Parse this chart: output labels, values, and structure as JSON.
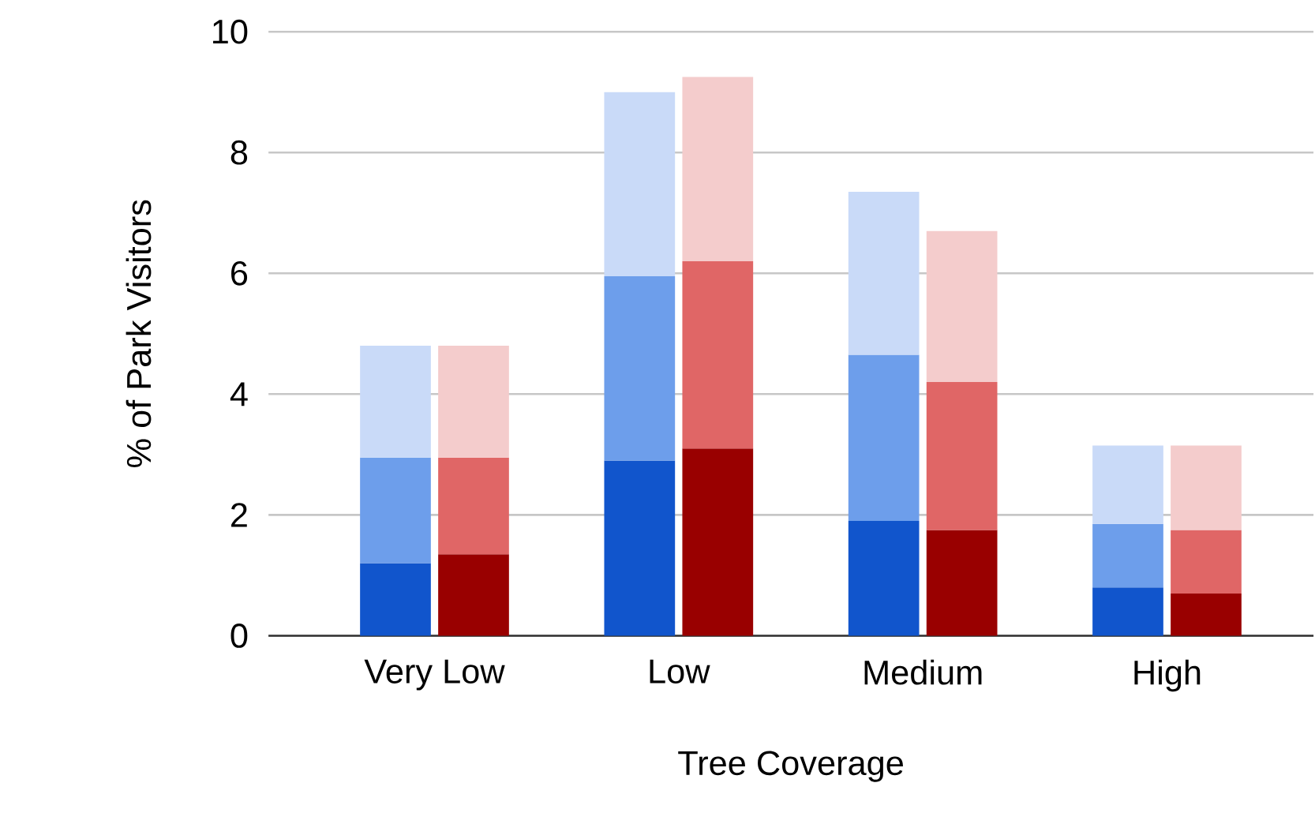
{
  "chart_data": {
    "type": "bar",
    "xlabel": "Tree Coverage",
    "ylabel": "% of Park Visitors",
    "categories": [
      "Very Low",
      "Low",
      "Medium",
      "High"
    ],
    "series": [
      {
        "color": "#1155cc",
        "values": [
          1.2,
          2.9,
          1.9,
          0.8
        ],
        "base": [
          0,
          0,
          0,
          0
        ]
      },
      {
        "color": "#6d9eeb",
        "values": [
          1.75,
          3.05,
          2.75,
          1.05
        ],
        "base": [
          1.2,
          2.9,
          1.9,
          0.8
        ]
      },
      {
        "color": "#c9daf8",
        "values": [
          1.85,
          3.05,
          2.7,
          1.3
        ],
        "base": [
          2.95,
          5.95,
          4.65,
          1.85
        ]
      },
      {
        "color": "#990000",
        "values": [
          1.35,
          3.1,
          1.75,
          0.7
        ],
        "base": [
          0,
          0,
          0,
          0
        ]
      },
      {
        "color": "#e06666",
        "values": [
          1.6,
          3.1,
          2.45,
          1.05
        ],
        "base": [
          1.35,
          3.1,
          1.75,
          0.7
        ]
      },
      {
        "color": "#f4cccc",
        "values": [
          1.85,
          3.05,
          2.5,
          1.4
        ],
        "base": [
          2.95,
          6.2,
          4.2,
          1.75
        ]
      }
    ],
    "ylim": [
      0,
      10
    ],
    "yticks": [
      0,
      2,
      4,
      6,
      8,
      10
    ],
    "grid": "y"
  }
}
